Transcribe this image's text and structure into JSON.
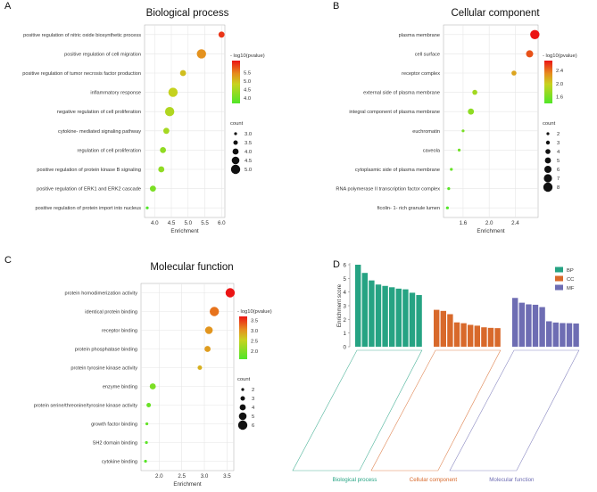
{
  "chart_data": [
    {
      "panel": "A",
      "type": "scatter",
      "title": "Biological process",
      "xlabel": "Enrichment",
      "xlim": [
        3.7,
        6.1
      ],
      "xticks": [
        4.0,
        4.5,
        5.0,
        5.5,
        6.0
      ],
      "xtick_labels": [
        "4.0",
        "4.5",
        "5.0",
        "5.5",
        "6.0"
      ],
      "terms": [
        "positive regulation of nitric oxide biosynthetic process",
        "positive regulation of cell migration",
        "positive regulation of tumor necrosis factor production",
        "inflammatory response",
        "negative regulation of cell proliferation",
        "cytokine- mediated signaling pathway",
        "regulation of cell proliferation",
        "positive regulation of protein kinase B signaling",
        "positive regulation of ERK1 and ERK2 cascade",
        "positive regulation of protein import into nucleus"
      ],
      "enrichment": [
        6.0,
        5.4,
        4.85,
        4.55,
        4.45,
        4.35,
        4.25,
        4.2,
        3.95,
        3.78
      ],
      "count": [
        4,
        5,
        4,
        5,
        5,
        4,
        4,
        4,
        4,
        3
      ],
      "neglog10p": [
        6.0,
        5.4,
        5.0,
        4.8,
        4.6,
        4.5,
        4.3,
        4.3,
        4.1,
        3.7
      ],
      "color_range": [
        3.7,
        6.2
      ],
      "color_legend_title": "- log10(pvalue)",
      "color_ticks": [
        "5.5",
        "5.0",
        "4.5",
        "4.0"
      ],
      "color_tick_values": [
        5.5,
        5.0,
        4.5,
        4.0
      ],
      "size_legend_title": "count",
      "size_ticks": [
        "3.0",
        "3.5",
        "4.0",
        "4.5",
        "5.0"
      ],
      "size_tick_values": [
        3.0,
        3.5,
        4.0,
        4.5,
        5.0
      ],
      "size_range": [
        3,
        5
      ]
    },
    {
      "panel": "B",
      "type": "scatter",
      "title": "Cellular component",
      "xlabel": "Enrichment",
      "xlim": [
        1.3,
        2.75
      ],
      "xticks": [
        1.6,
        2.0,
        2.4
      ],
      "xtick_labels": [
        "1.6",
        "2.0",
        "2.4"
      ],
      "terms": [
        "plasma membrane",
        "cell surface",
        "receptor complex",
        "external side of plasma membrane",
        "integral component of plasma membrane",
        "euchromatin",
        "caveola",
        "cytoplasmic side of plasma membrane",
        "RNA polymerase II transcription factor complex",
        "ficolin- 1- rich granule lumen"
      ],
      "enrichment": [
        2.7,
        2.62,
        2.38,
        1.78,
        1.72,
        1.6,
        1.54,
        1.42,
        1.38,
        1.36
      ],
      "count": [
        8,
        6,
        4,
        4,
        5,
        2,
        2,
        2,
        2,
        2
      ],
      "neglog10p": [
        2.7,
        2.5,
        2.2,
        1.8,
        1.7,
        1.6,
        1.55,
        1.5,
        1.45,
        1.4
      ],
      "color_range": [
        1.4,
        2.7
      ],
      "color_legend_title": "- log10(pvalue)",
      "color_ticks": [
        "2.4",
        "2.0",
        "1.6"
      ],
      "color_tick_values": [
        2.4,
        2.0,
        1.6
      ],
      "size_legend_title": "count",
      "size_ticks": [
        "2",
        "3",
        "4",
        "5",
        "6",
        "7",
        "8"
      ],
      "size_tick_values": [
        2,
        3,
        4,
        5,
        6,
        7,
        8
      ],
      "size_range": [
        2,
        8
      ]
    },
    {
      "panel": "C",
      "type": "scatter",
      "title": "Molecular function",
      "xlabel": "Enrichment",
      "xlim": [
        1.6,
        3.65
      ],
      "xticks": [
        2.0,
        2.5,
        3.0,
        3.5
      ],
      "xtick_labels": [
        "2.0",
        "2.5",
        "3.0",
        "3.5"
      ],
      "terms": [
        "protein homodimerization activity",
        "identical protein binding",
        "receptor binding",
        "protein phosphatase binding",
        "protein tyrosine kinase activity",
        "enzyme binding",
        "protein serine/threonine/tyrosine kinase activity",
        "growth factor binding",
        "SH2 domain binding",
        "cytokine binding"
      ],
      "enrichment": [
        3.57,
        3.22,
        3.1,
        3.07,
        2.9,
        1.86,
        1.77,
        1.73,
        1.72,
        1.7
      ],
      "count": [
        6,
        6,
        5,
        4,
        3,
        4,
        3,
        2,
        2,
        2
      ],
      "neglog10p": [
        3.7,
        3.2,
        3.0,
        2.95,
        2.8,
        1.95,
        1.8,
        1.75,
        1.7,
        1.65
      ],
      "color_range": [
        1.6,
        3.7
      ],
      "color_legend_title": "- log10(pvalue)",
      "color_ticks": [
        "3.5",
        "3.0",
        "2.5",
        "2.0"
      ],
      "color_tick_values": [
        3.5,
        3.0,
        2.5,
        2.0
      ],
      "size_legend_title": "count",
      "size_ticks": [
        "2",
        "3",
        "4",
        "5",
        "6"
      ],
      "size_tick_values": [
        2,
        3,
        4,
        5,
        6
      ],
      "size_range": [
        2,
        6
      ]
    },
    {
      "panel": "D",
      "type": "bar",
      "ylabel": "Enrichment score",
      "ylim": [
        0,
        6
      ],
      "yticks": [
        0,
        1,
        2,
        3,
        4,
        5,
        6
      ],
      "legend": [
        {
          "name": "BP",
          "color": "#26a383"
        },
        {
          "name": "CC",
          "color": "#d8692b"
        },
        {
          "name": "MF",
          "color": "#6e6db3"
        }
      ],
      "series": [
        {
          "name": "BP",
          "group_label": "Biological process",
          "values": [
            6.0,
            5.4,
            4.85,
            4.55,
            4.45,
            4.35,
            4.25,
            4.2,
            3.95,
            3.78
          ]
        },
        {
          "name": "CC",
          "group_label": "Cellular component",
          "values": [
            2.7,
            2.62,
            2.38,
            1.78,
            1.72,
            1.6,
            1.54,
            1.42,
            1.38,
            1.36
          ]
        },
        {
          "name": "MF",
          "group_label": "Molecular function",
          "values": [
            3.57,
            3.22,
            3.1,
            3.07,
            2.9,
            1.86,
            1.77,
            1.73,
            1.72,
            1.7
          ]
        }
      ]
    }
  ]
}
